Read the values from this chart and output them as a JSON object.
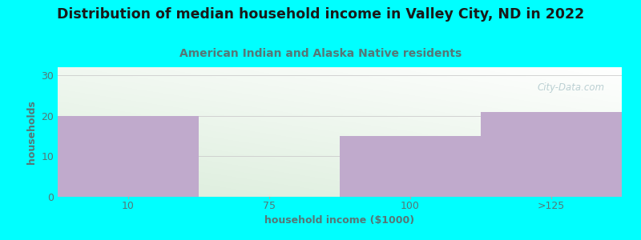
{
  "title": "Distribution of median household income in Valley City, ND in 2022",
  "subtitle": "American Indian and Alaska Native residents",
  "xlabel": "household income ($1000)",
  "ylabel": "households",
  "background_color": "#00FFFF",
  "bar_color": "#C0AACC",
  "categories": [
    "10",
    "75",
    "100",
    ">125"
  ],
  "values": [
    20,
    0,
    15,
    21
  ],
  "bar_edges": [
    0,
    1,
    2,
    3,
    4
  ],
  "ylim": [
    0,
    32
  ],
  "yticks": [
    0,
    10,
    20,
    30
  ],
  "title_color": "#1a1a1a",
  "subtitle_color": "#557777",
  "xlabel_color": "#557777",
  "ylabel_color": "#557777",
  "tick_color": "#557777",
  "title_fontsize": 12.5,
  "subtitle_fontsize": 10,
  "label_fontsize": 9,
  "tick_fontsize": 9,
  "watermark": "City-Data.com"
}
